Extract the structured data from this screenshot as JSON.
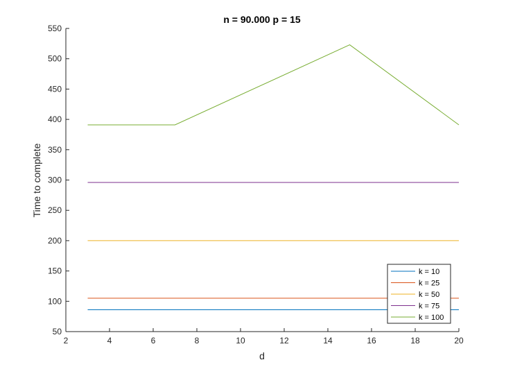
{
  "chart_data": {
    "type": "line",
    "title": "n = 90.000  p = 15",
    "xlabel": "d",
    "ylabel": "Time to complete",
    "xlim": [
      2,
      20
    ],
    "ylim": [
      50,
      550
    ],
    "xticks": [
      2,
      4,
      6,
      8,
      10,
      12,
      14,
      16,
      18,
      20
    ],
    "yticks": [
      50,
      100,
      150,
      200,
      250,
      300,
      350,
      400,
      450,
      500,
      550
    ],
    "grid": false,
    "legend_position": "bottom-right",
    "series": [
      {
        "name": "k = 10",
        "color": "#0072BD",
        "x": [
          3,
          7,
          15,
          20
        ],
        "y": [
          86,
          86,
          86,
          86
        ]
      },
      {
        "name": "k = 25",
        "color": "#D95319",
        "x": [
          3,
          7,
          15,
          20
        ],
        "y": [
          105,
          105,
          105,
          105
        ]
      },
      {
        "name": "k = 50",
        "color": "#EDB120",
        "x": [
          3,
          7,
          15,
          20
        ],
        "y": [
          200,
          200,
          200,
          200
        ]
      },
      {
        "name": "k = 75",
        "color": "#7E2F8E",
        "x": [
          3,
          7,
          15,
          20
        ],
        "y": [
          296,
          296,
          296,
          296
        ]
      },
      {
        "name": "k = 100",
        "color": "#77AC30",
        "x": [
          3,
          7,
          15,
          20
        ],
        "y": [
          391,
          391,
          523,
          391
        ]
      }
    ]
  }
}
